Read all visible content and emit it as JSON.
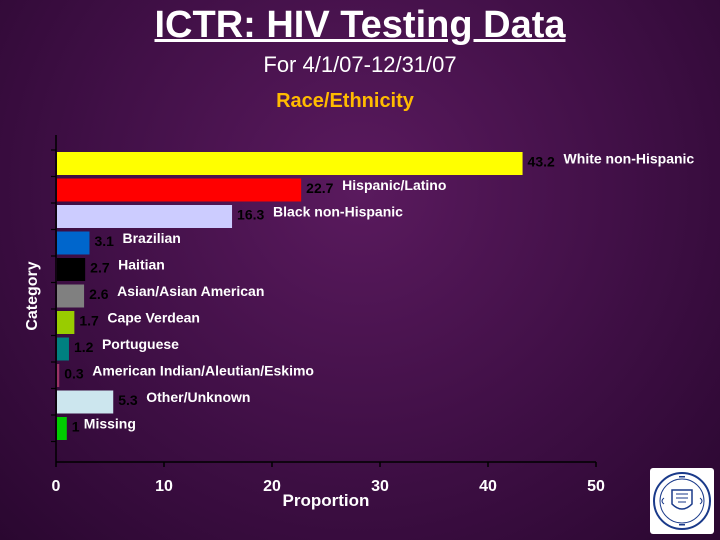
{
  "page": {
    "title": "ICTR: HIV Testing Data",
    "subtitle": "For 4/1/07-12/31/07"
  },
  "chart_data": {
    "type": "bar",
    "orientation": "horizontal",
    "title": "Race/Ethnicity",
    "xlabel": "Proportion",
    "ylabel": "Category",
    "xlim": [
      0,
      50
    ],
    "xticks": [
      "0",
      "10",
      "20",
      "30",
      "40",
      "50"
    ],
    "grid": false,
    "categories": [
      "White non-Hispanic",
      "Hispanic/Latino",
      "Black non-Hispanic",
      "Brazilian",
      "Haitian",
      "Asian/Asian American",
      "Cape Verdean",
      "Portuguese",
      "American Indian/Aleutian/Eskimo",
      "Other/Unknown",
      "Missing"
    ],
    "values": [
      43.2,
      22.7,
      16.3,
      3.1,
      2.7,
      2.6,
      1.7,
      1.2,
      0.3,
      5.3,
      1
    ],
    "value_labels": [
      "43.2",
      "22.7",
      "16.3",
      "3.1",
      "2.7",
      "2.6",
      "1.7",
      "1.2",
      "0.3",
      "5.3",
      "1"
    ],
    "colors": [
      "#ffff00",
      "#ff0000",
      "#ccccff",
      "#0066cc",
      "#000000",
      "#808080",
      "#99cc00",
      "#008080",
      "#993366",
      "#cce6ee",
      "#00cc00"
    ]
  }
}
